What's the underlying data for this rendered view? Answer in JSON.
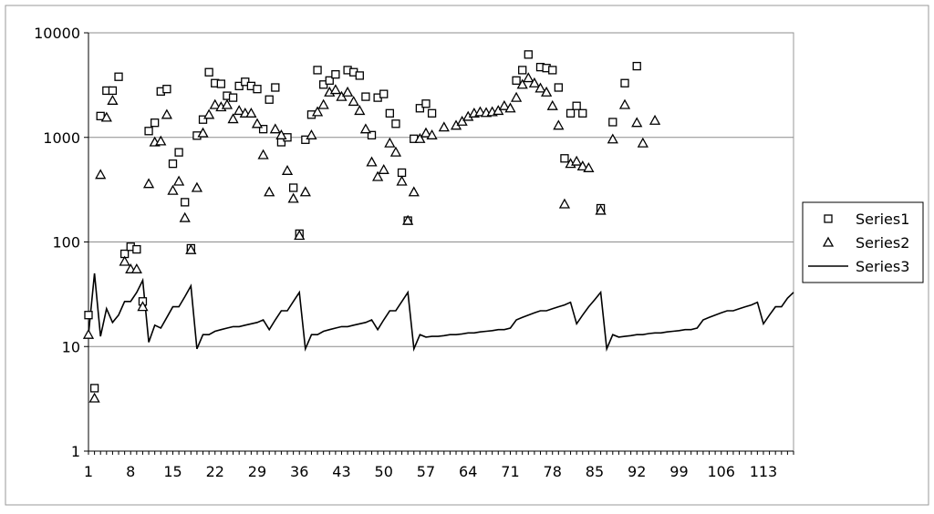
{
  "chart_data": {
    "type": "scatter",
    "y_scale": "log",
    "ylim": [
      1,
      10000
    ],
    "xlim": [
      1,
      118
    ],
    "y_ticks": [
      "1",
      "10",
      "100",
      "1000",
      "10000"
    ],
    "x_ticks": [
      "1",
      "8",
      "15",
      "22",
      "29",
      "36",
      "43",
      "50",
      "57",
      "64",
      "71",
      "78",
      "85",
      "92",
      "99",
      "106",
      "113"
    ],
    "grid": "horizontal",
    "legend_position": "right",
    "series": [
      {
        "name": "Series1",
        "marker": "square",
        "points": [
          [
            1,
            20
          ],
          [
            2,
            4
          ],
          [
            3,
            1600
          ],
          [
            4,
            2800
          ],
          [
            5,
            2800
          ],
          [
            6,
            3800
          ],
          [
            7,
            77
          ],
          [
            8,
            90
          ],
          [
            9,
            85
          ],
          [
            10,
            27
          ],
          [
            11,
            1150
          ],
          [
            12,
            1380
          ],
          [
            13,
            2750
          ],
          [
            14,
            2900
          ],
          [
            15,
            560
          ],
          [
            16,
            720
          ],
          [
            17,
            240
          ],
          [
            18,
            87
          ],
          [
            19,
            1040
          ],
          [
            20,
            1480
          ],
          [
            21,
            4200
          ],
          [
            22,
            3300
          ],
          [
            23,
            3250
          ],
          [
            24,
            2500
          ],
          [
            25,
            2400
          ],
          [
            26,
            3100
          ],
          [
            27,
            3400
          ],
          [
            28,
            3100
          ],
          [
            29,
            2900
          ],
          [
            30,
            1200
          ],
          [
            31,
            2300
          ],
          [
            32,
            3000
          ],
          [
            33,
            900
          ],
          [
            34,
            1000
          ],
          [
            35,
            330
          ],
          [
            36,
            120
          ],
          [
            37,
            950
          ],
          [
            38,
            1650
          ],
          [
            39,
            4400
          ],
          [
            40,
            3200
          ],
          [
            41,
            3500
          ],
          [
            42,
            4000
          ],
          [
            44,
            4400
          ],
          [
            45,
            4200
          ],
          [
            46,
            3900
          ],
          [
            47,
            2450
          ],
          [
            48,
            1050
          ],
          [
            49,
            2400
          ],
          [
            50,
            2600
          ],
          [
            51,
            1700
          ],
          [
            52,
            1350
          ],
          [
            53,
            460
          ],
          [
            54,
            160
          ],
          [
            55,
            970
          ],
          [
            56,
            1900
          ],
          [
            57,
            2100
          ],
          [
            58,
            1700
          ],
          [
            72,
            3500
          ],
          [
            73,
            4400
          ],
          [
            74,
            6200
          ],
          [
            76,
            4700
          ],
          [
            77,
            4600
          ],
          [
            78,
            4400
          ],
          [
            79,
            3000
          ],
          [
            80,
            630
          ],
          [
            81,
            1700
          ],
          [
            82,
            2000
          ],
          [
            83,
            1700
          ],
          [
            86,
            210
          ],
          [
            88,
            1400
          ],
          [
            90,
            3300
          ],
          [
            92,
            4800
          ]
        ]
      },
      {
        "name": "Series2",
        "marker": "triangle",
        "points": [
          [
            1,
            13
          ],
          [
            2,
            3.2
          ],
          [
            3,
            440
          ],
          [
            4,
            1550
          ],
          [
            5,
            2250
          ],
          [
            7,
            65
          ],
          [
            8,
            55
          ],
          [
            9,
            55
          ],
          [
            10,
            24
          ],
          [
            11,
            360
          ],
          [
            12,
            900
          ],
          [
            13,
            920
          ],
          [
            14,
            1650
          ],
          [
            15,
            310
          ],
          [
            16,
            380
          ],
          [
            17,
            170
          ],
          [
            18,
            84
          ],
          [
            19,
            330
          ],
          [
            20,
            1100
          ],
          [
            21,
            1650
          ],
          [
            22,
            2050
          ],
          [
            23,
            1950
          ],
          [
            24,
            2050
          ],
          [
            25,
            1500
          ],
          [
            26,
            1800
          ],
          [
            27,
            1700
          ],
          [
            28,
            1700
          ],
          [
            29,
            1350
          ],
          [
            30,
            680
          ],
          [
            31,
            300
          ],
          [
            32,
            1200
          ],
          [
            33,
            1050
          ],
          [
            34,
            480
          ],
          [
            35,
            260
          ],
          [
            36,
            115
          ],
          [
            37,
            300
          ],
          [
            38,
            1050
          ],
          [
            39,
            1750
          ],
          [
            40,
            2050
          ],
          [
            41,
            2700
          ],
          [
            42,
            2850
          ],
          [
            43,
            2450
          ],
          [
            44,
            2700
          ],
          [
            45,
            2200
          ],
          [
            46,
            1800
          ],
          [
            47,
            1200
          ],
          [
            48,
            580
          ],
          [
            49,
            420
          ],
          [
            50,
            490
          ],
          [
            51,
            880
          ],
          [
            52,
            720
          ],
          [
            53,
            380
          ],
          [
            54,
            160
          ],
          [
            55,
            300
          ],
          [
            56,
            970
          ],
          [
            57,
            1100
          ],
          [
            58,
            1050
          ],
          [
            60,
            1250
          ],
          [
            62,
            1300
          ],
          [
            63,
            1420
          ],
          [
            64,
            1580
          ],
          [
            65,
            1700
          ],
          [
            66,
            1750
          ],
          [
            67,
            1720
          ],
          [
            68,
            1750
          ],
          [
            69,
            1800
          ],
          [
            70,
            2000
          ],
          [
            71,
            1900
          ],
          [
            72,
            2400
          ],
          [
            73,
            3200
          ],
          [
            74,
            3700
          ],
          [
            75,
            3300
          ],
          [
            76,
            2950
          ],
          [
            77,
            2700
          ],
          [
            78,
            2000
          ],
          [
            79,
            1300
          ],
          [
            80,
            230
          ],
          [
            81,
            560
          ],
          [
            82,
            590
          ],
          [
            83,
            530
          ],
          [
            84,
            510
          ],
          [
            86,
            200
          ],
          [
            88,
            960
          ],
          [
            90,
            2050
          ],
          [
            92,
            1380
          ],
          [
            93,
            880
          ],
          [
            95,
            1450
          ]
        ]
      },
      {
        "name": "Series3",
        "marker": "line",
        "points": [
          [
            1,
            13
          ],
          [
            2,
            50
          ],
          [
            3,
            12.5
          ],
          [
            4,
            23
          ],
          [
            5,
            17
          ],
          [
            6,
            20
          ],
          [
            7,
            27
          ],
          [
            8,
            27
          ],
          [
            9,
            33
          ],
          [
            10,
            43
          ],
          [
            11,
            11
          ],
          [
            12,
            16
          ],
          [
            13,
            15
          ],
          [
            14,
            19
          ],
          [
            15,
            24
          ],
          [
            16,
            24
          ],
          [
            17,
            30
          ],
          [
            18,
            38
          ],
          [
            19,
            9.5
          ],
          [
            20,
            13
          ],
          [
            21,
            13
          ],
          [
            22,
            14
          ],
          [
            23,
            14.5
          ],
          [
            24,
            15
          ],
          [
            25,
            15.5
          ],
          [
            26,
            15.5
          ],
          [
            27,
            16
          ],
          [
            28,
            16.5
          ],
          [
            29,
            17
          ],
          [
            30,
            18
          ],
          [
            31,
            14.5
          ],
          [
            32,
            18
          ],
          [
            33,
            22
          ],
          [
            34,
            22
          ],
          [
            35,
            27
          ],
          [
            36,
            33
          ],
          [
            37,
            9.5
          ],
          [
            38,
            13
          ],
          [
            39,
            13
          ],
          [
            40,
            14
          ],
          [
            41,
            14.5
          ],
          [
            42,
            15
          ],
          [
            43,
            15.5
          ],
          [
            44,
            15.5
          ],
          [
            45,
            16
          ],
          [
            46,
            16.5
          ],
          [
            47,
            17
          ],
          [
            48,
            18
          ],
          [
            49,
            14.5
          ],
          [
            50,
            18
          ],
          [
            51,
            22
          ],
          [
            52,
            22
          ],
          [
            53,
            27
          ],
          [
            54,
            33
          ],
          [
            55,
            9.5
          ],
          [
            56,
            13
          ],
          [
            57,
            12.3
          ],
          [
            58,
            12.5
          ],
          [
            59,
            12.5
          ],
          [
            60,
            12.7
          ],
          [
            61,
            13
          ],
          [
            62,
            13
          ],
          [
            63,
            13.2
          ],
          [
            64,
            13.5
          ],
          [
            65,
            13.5
          ],
          [
            66,
            13.8
          ],
          [
            67,
            14
          ],
          [
            68,
            14.2
          ],
          [
            69,
            14.5
          ],
          [
            70,
            14.5
          ],
          [
            71,
            15
          ],
          [
            72,
            18
          ],
          [
            73,
            19
          ],
          [
            74,
            20
          ],
          [
            75,
            21
          ],
          [
            76,
            22
          ],
          [
            77,
            22
          ],
          [
            78,
            23
          ],
          [
            79,
            24
          ],
          [
            80,
            25
          ],
          [
            81,
            26.5
          ],
          [
            82,
            16.5
          ],
          [
            83,
            20
          ],
          [
            84,
            24
          ],
          [
            85,
            28
          ],
          [
            86,
            33
          ],
          [
            87,
            9.5
          ],
          [
            88,
            13
          ],
          [
            89,
            12.3
          ],
          [
            90,
            12.5
          ],
          [
            91,
            12.7
          ],
          [
            92,
            13
          ],
          [
            93,
            13
          ],
          [
            94,
            13.3
          ],
          [
            95,
            13.5
          ],
          [
            96,
            13.5
          ],
          [
            97,
            13.8
          ],
          [
            98,
            14
          ],
          [
            99,
            14.2
          ],
          [
            100,
            14.5
          ],
          [
            101,
            14.5
          ],
          [
            102,
            15
          ],
          [
            103,
            18
          ],
          [
            104,
            19
          ],
          [
            105,
            20
          ],
          [
            106,
            21
          ],
          [
            107,
            22
          ],
          [
            108,
            22
          ],
          [
            109,
            23
          ],
          [
            110,
            24
          ],
          [
            111,
            25
          ],
          [
            112,
            26.5
          ],
          [
            113,
            16.5
          ],
          [
            114,
            20
          ],
          [
            115,
            24
          ],
          [
            116,
            24
          ],
          [
            117,
            29
          ],
          [
            118,
            33
          ]
        ]
      }
    ]
  }
}
